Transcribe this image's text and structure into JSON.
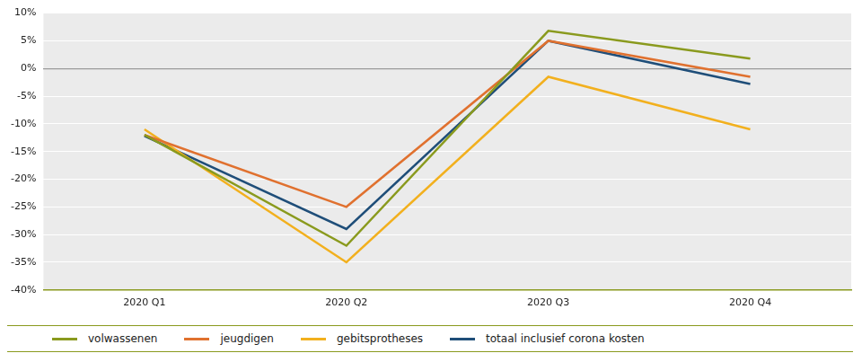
{
  "chart_data": {
    "type": "line",
    "categories": [
      "2020 Q1",
      "2020 Q2",
      "2020 Q3",
      "2020 Q4"
    ],
    "series": [
      {
        "name": "volwassenen",
        "color": "#8a9a1e",
        "values": [
          -12,
          -32,
          6.8,
          1.8
        ]
      },
      {
        "name": "jeugdigen",
        "color": "#e0712f",
        "values": [
          -12,
          -25,
          5,
          -1.5
        ]
      },
      {
        "name": "gebitsprotheses",
        "color": "#f2b01e",
        "values": [
          -11,
          -35,
          -1.5,
          -11
        ]
      },
      {
        "name": "totaal inclusief corona kosten",
        "color": "#1f4e79",
        "values": [
          -12.2,
          -29,
          5,
          -2.8
        ]
      }
    ],
    "ylim": [
      -40,
      10
    ],
    "yticks": [
      {
        "value": -40,
        "label": "-40%"
      },
      {
        "value": -35,
        "label": "-35%"
      },
      {
        "value": -30,
        "label": "-30%"
      },
      {
        "value": -25,
        "label": "-25%"
      },
      {
        "value": -20,
        "label": "-20%"
      },
      {
        "value": -15,
        "label": "-15%"
      },
      {
        "value": -10,
        "label": "-10%"
      },
      {
        "value": -5,
        "label": "-5%"
      },
      {
        "value": 0,
        "label": "0%"
      },
      {
        "value": 5,
        "label": "5%"
      },
      {
        "value": 10,
        "label": "10%"
      }
    ],
    "grid": true,
    "legend": "bottom"
  }
}
